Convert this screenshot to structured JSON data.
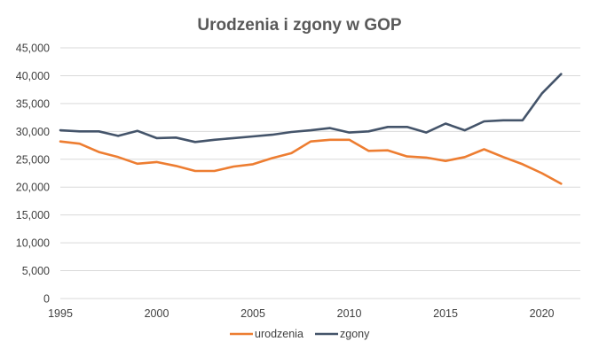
{
  "chart_data": {
    "type": "line",
    "title": "Urodzenia i zgony w GOP",
    "xlabel": "",
    "ylabel": "",
    "x": [
      1995,
      1996,
      1997,
      1998,
      1999,
      2000,
      2001,
      2002,
      2003,
      2004,
      2005,
      2006,
      2007,
      2008,
      2009,
      2010,
      2011,
      2012,
      2013,
      2014,
      2015,
      2016,
      2017,
      2018,
      2019,
      2020,
      2021
    ],
    "xticks": [
      "1995",
      "2000",
      "2005",
      "2010",
      "2015",
      "2020"
    ],
    "xlim": [
      1995,
      2022
    ],
    "ylim": [
      0,
      45000
    ],
    "yticks": [
      "0",
      "5,000",
      "10,000",
      "15,000",
      "20,000",
      "25,000",
      "30,000",
      "35,000",
      "40,000",
      "45,000"
    ],
    "grid": "horizontal",
    "legend_position": "bottom",
    "series": [
      {
        "name": "urodzenia",
        "color": "#ed7d31",
        "values": [
          28200,
          27800,
          26300,
          25400,
          24200,
          24500,
          23800,
          22900,
          22900,
          23700,
          24100,
          25200,
          26100,
          28200,
          28500,
          28500,
          26500,
          26600,
          25500,
          25300,
          24700,
          25400,
          26800,
          25400,
          24100,
          22500,
          20600
        ]
      },
      {
        "name": "zgony",
        "color": "#44546a",
        "values": [
          30200,
          30000,
          30000,
          29200,
          30100,
          28800,
          28900,
          28100,
          28500,
          28800,
          29100,
          29400,
          29900,
          30200,
          30600,
          29800,
          30000,
          30800,
          30800,
          29800,
          31400,
          30200,
          31800,
          32000,
          32000,
          36800,
          40300
        ]
      }
    ]
  }
}
